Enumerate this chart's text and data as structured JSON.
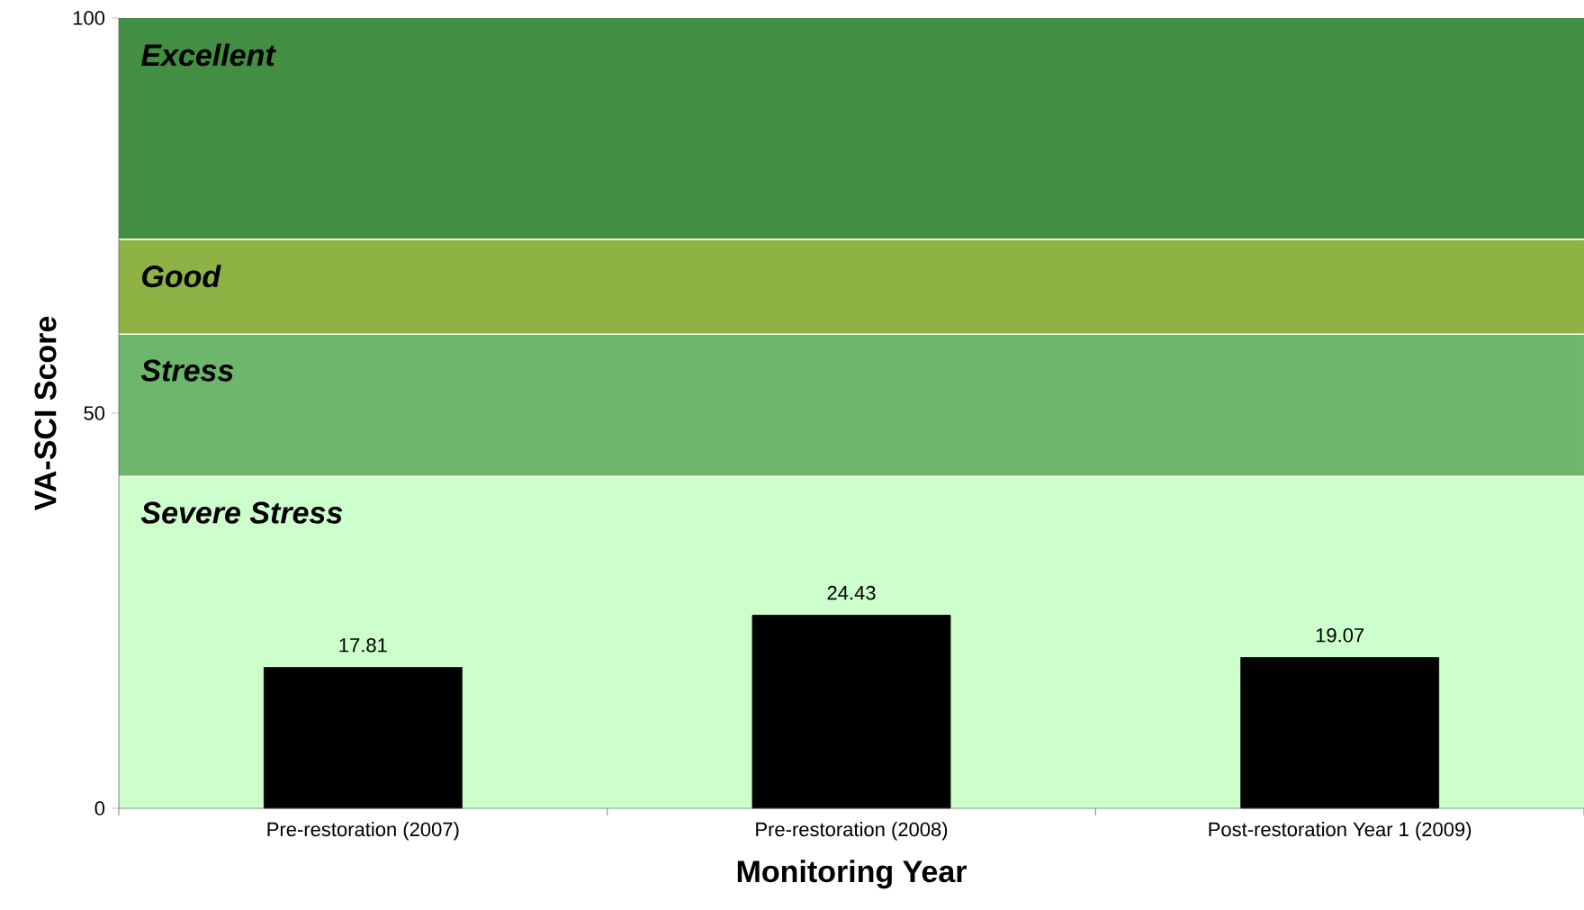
{
  "chart_data": {
    "type": "bar",
    "xlabel": "Monitoring Year",
    "ylabel": "VA-SCI Score",
    "categories": [
      "Pre-restoration (2007)",
      "Pre-restoration (2008)",
      "Post-restoration Year 1 (2009)"
    ],
    "values": [
      17.81,
      24.43,
      19.07
    ],
    "color": "#000000",
    "data_labels": true,
    "ylim": [
      0,
      100
    ],
    "yticks": [
      0,
      50,
      100
    ],
    "grid": false,
    "bands": [
      {
        "axis": "y",
        "from": 72,
        "to": 100,
        "label": "Excellent",
        "color": "#428e42"
      },
      {
        "axis": "y",
        "from": 60,
        "to": 72,
        "label": "Good",
        "color": "#8fb245"
      },
      {
        "axis": "y",
        "from": 42,
        "to": 60,
        "label": "Stress",
        "color": "#6db76d"
      },
      {
        "axis": "y",
        "from": 0,
        "to": 42,
        "label": "Severe Stress",
        "color": "#ccffcc"
      }
    ]
  }
}
